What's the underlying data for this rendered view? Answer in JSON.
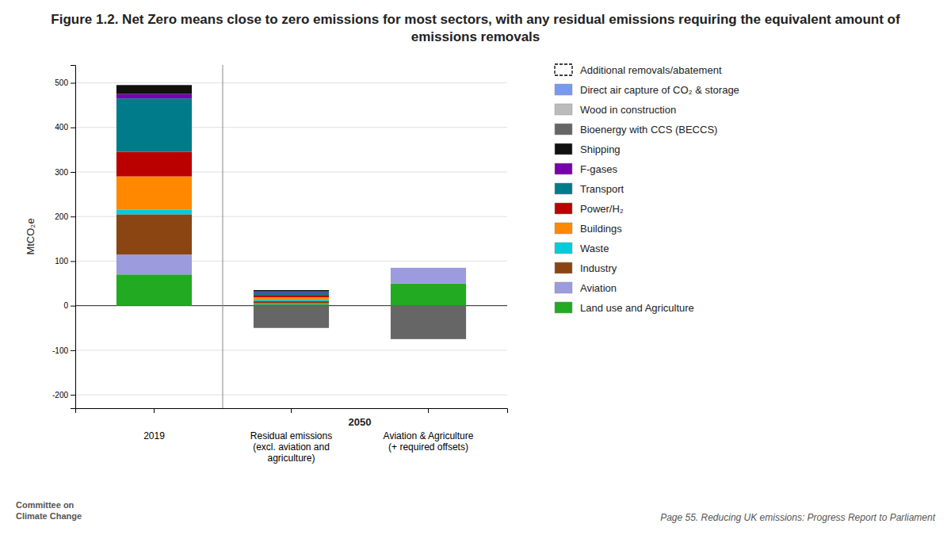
{
  "chart_data": {
    "type": "bar",
    "title": "Figure 1.2. Net Zero means close to zero emissions for most sectors, with any residual emissions requiring the equivalent amount of emissions removals",
    "y_label": "MtCO₂e",
    "categories": [
      "2019",
      "Residual emissions\n(excl. aviation and\nagriculture)",
      "Aviation & Agriculture\n(+ required offsets)"
    ],
    "annotations": [
      "2050",
      "Page 55. Reducing UK emissions: Progress Report to Parliament",
      "Committee on\nClimate Change"
    ],
    "stacked": true,
    "grid": true,
    "legend": "right",
    "ylim": [
      -230,
      540
    ],
    "yticks": [
      -200,
      -100,
      0,
      100,
      200,
      300,
      400,
      500
    ],
    "series": [
      {
        "name": "Additional removals/abatement",
        "color": "#FFFFFF",
        "line_style": "dashed",
        "values": [
          null,
          null,
          null
        ]
      },
      {
        "name": "Direct air capture of CO₂ & storage",
        "color": "#7799EE",
        "values": [
          null,
          null,
          null
        ]
      },
      {
        "name": "Wood in construction",
        "color": "#BBBBBB",
        "values": [
          null,
          null,
          null
        ]
      },
      {
        "name": "Bioenergy with CCS (BECCS)",
        "color": "#666666",
        "values": [
          null,
          -50,
          -75
        ]
      },
      {
        "name": "Shipping",
        "color": "#111111",
        "values": [
          20,
          3,
          null
        ]
      },
      {
        "name": "F-gases",
        "color": "#7700AA",
        "values": [
          10,
          2,
          null
        ]
      },
      {
        "name": "Transport",
        "color": "#007B8A",
        "values": [
          120,
          6,
          null
        ]
      },
      {
        "name": "Power/H₂",
        "color": "#BB0000",
        "values": [
          55,
          5,
          null
        ]
      },
      {
        "name": "Buildings",
        "color": "#FF8800",
        "values": [
          75,
          5,
          null
        ]
      },
      {
        "name": "Waste",
        "color": "#00CCDD",
        "values": [
          10,
          3,
          null
        ]
      },
      {
        "name": "Industry",
        "color": "#8B4513",
        "values": [
          90,
          6,
          null
        ]
      },
      {
        "name": "Aviation",
        "color": "#9B9BDD",
        "values": [
          45,
          2,
          35
        ]
      },
      {
        "name": "Land use and Agriculture",
        "color": "#22AA22",
        "values": [
          70,
          3,
          50
        ]
      }
    ]
  }
}
